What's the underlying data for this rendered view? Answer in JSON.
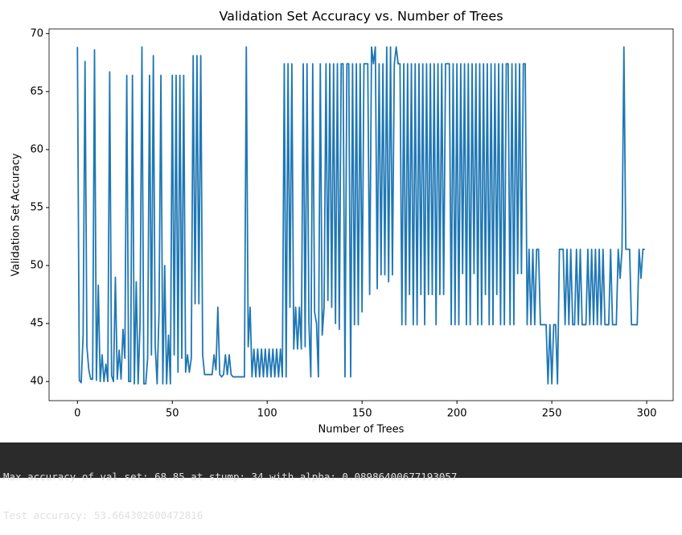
{
  "chart_data": {
    "type": "line",
    "title": "Validation Set Accuracy vs. Number of Trees",
    "xlabel": "Number of Trees",
    "ylabel": "Validation Set Accuracy",
    "xlim": [
      -14.95,
      313.95
    ],
    "ylim": [
      38.35,
      70.4
    ],
    "xticks": [
      0,
      50,
      100,
      150,
      200,
      250,
      300
    ],
    "yticks": [
      40,
      45,
      50,
      55,
      60,
      65,
      70
    ],
    "grid": false,
    "color": "#1f77b4",
    "values": [
      68.85,
      40.1,
      39.9,
      44,
      67.6,
      43,
      41,
      40.2,
      40.2,
      68.6,
      40.1,
      48.3,
      40,
      42.3,
      40,
      41.5,
      40,
      66.7,
      40.5,
      40,
      49,
      40.2,
      42.7,
      40.2,
      44.5,
      42,
      66.4,
      40,
      40,
      66.4,
      39.8,
      48.6,
      39.8,
      45,
      68.85,
      39.8,
      39.8,
      42,
      66.4,
      42.3,
      68.1,
      43,
      39.8,
      46,
      66.4,
      39.8,
      50,
      39.8,
      44,
      39.8,
      66.4,
      42.3,
      66.4,
      40.8,
      66.4,
      42,
      66.4,
      40.8,
      42.3,
      40.8,
      42,
      68.1,
      46.7,
      68.1,
      46.7,
      68.1,
      42.3,
      40.6,
      40.6,
      40.6,
      40.6,
      40.6,
      42.3,
      41,
      46.4,
      40.6,
      40.4,
      40.6,
      42.3,
      40.6,
      42.3,
      40.6,
      40.4,
      40.4,
      40.4,
      40.4,
      40.4,
      40.4,
      40.4,
      68.85,
      43,
      46.4,
      40.4,
      42.8,
      40.4,
      42.8,
      40.4,
      42.8,
      40.4,
      42.8,
      40.4,
      42.8,
      40.4,
      42.8,
      40.4,
      42.8,
      40.4,
      42.8,
      40.4,
      67.4,
      40.4,
      67.4,
      46.4,
      67.4,
      42.8,
      46.4,
      42.8,
      46.4,
      42.8,
      67.4,
      43,
      67.4,
      45,
      40.4,
      67.4,
      46,
      45,
      40.4,
      67.4,
      44,
      46.4,
      67.4,
      47,
      67.4,
      46.4,
      67.4,
      45,
      67.4,
      44.5,
      67.4,
      67.4,
      40.4,
      67.4,
      67.4,
      40.4,
      67.4,
      44.9,
      67.4,
      44.9,
      67.4,
      46,
      67.4,
      67.4,
      67.4,
      47.5,
      68.85,
      67.4,
      68.85,
      48,
      67.4,
      49.2,
      67.4,
      49.2,
      68.85,
      48.6,
      68.85,
      49.2,
      67.4,
      68.85,
      67.4,
      67.4,
      44.9,
      67.4,
      44.9,
      67.4,
      47.5,
      67.4,
      44.9,
      67.4,
      44.9,
      67.4,
      47.5,
      67.4,
      44.9,
      67.4,
      47.5,
      67.4,
      47.5,
      67.4,
      44.9,
      67.4,
      47.5,
      67.4,
      47.5,
      67.4,
      67.4,
      67.4,
      44.9,
      67.4,
      44.9,
      67.4,
      44.9,
      67.4,
      49.3,
      67.4,
      44.9,
      67.4,
      44.9,
      67.4,
      49.3,
      67.4,
      44.9,
      67.4,
      44.9,
      67.4,
      47.5,
      67.4,
      44.9,
      67.4,
      44.9,
      67.4,
      47.5,
      67.4,
      44.9,
      67.4,
      44.9,
      67.4,
      67.4,
      44.9,
      67.4,
      44.9,
      67.4,
      49.3,
      67.4,
      49.3,
      67.4,
      67.4,
      44.9,
      51.4,
      44.9,
      51.4,
      44.9,
      51.4,
      51.4,
      44.9,
      44.9,
      44.9,
      44.9,
      39.8,
      44.9,
      39.8,
      44.9,
      44.9,
      39.8,
      51.4,
      51.4,
      51.4,
      44.9,
      51.4,
      44.9,
      51.4,
      44.9,
      44.9,
      51.4,
      44.9,
      51.4,
      44.9,
      44.9,
      44.9,
      51.4,
      44.9,
      51.4,
      44.9,
      51.4,
      44.9,
      51.4,
      44.9,
      51.4,
      44.9,
      44.9,
      44.9,
      51.4,
      44.9,
      44.9,
      44.9,
      51.4,
      48.9,
      51.4,
      68.85,
      51.4,
      51.4,
      51.4,
      44.9,
      44.9,
      44.9,
      44.9,
      51.4,
      48.9,
      51.4,
      51.4
    ]
  },
  "output": {
    "lines": [
      "Max accuracy of val set: 68.85 at stump: 34 with alpha: 0.08986400677193057",
      "Test accuracy: 53.664302600472816"
    ]
  }
}
